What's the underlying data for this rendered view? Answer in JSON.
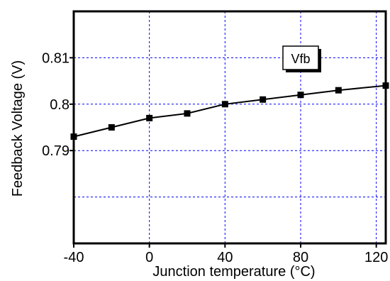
{
  "chart_data": {
    "type": "line",
    "title": "",
    "xlabel": "Junction temperature (°C)",
    "ylabel": "Feedback Voltage (V)",
    "xlim": [
      -40,
      125
    ],
    "ylim": [
      0.77,
      0.82
    ],
    "x_ticks": [
      -40,
      0,
      40,
      80,
      120
    ],
    "x_tick_labels": [
      "-40",
      "0",
      "40",
      "80",
      "120"
    ],
    "y_ticks": [
      0.79,
      0.8,
      0.81
    ],
    "y_tick_labels": [
      "0.79",
      "0.8",
      "0.81"
    ],
    "grid": true,
    "legend_placement": "top-right",
    "series": [
      {
        "name": "Vfb",
        "x": [
          -40,
          -20,
          0,
          20,
          40,
          60,
          80,
          100,
          125
        ],
        "y": [
          0.793,
          0.795,
          0.797,
          0.798,
          0.8,
          0.801,
          0.802,
          0.803,
          0.804
        ]
      }
    ]
  },
  "colors": {
    "grid": "#0000ff",
    "series": "#000000",
    "axes": "#000000",
    "legend_shadow": "#000000",
    "background": "#ffffff"
  }
}
